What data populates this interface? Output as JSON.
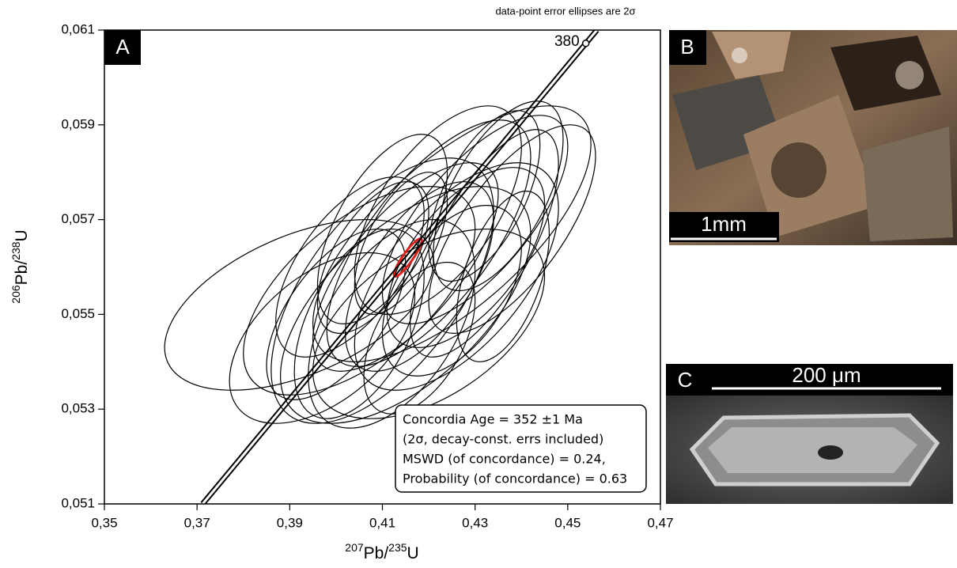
{
  "chart_data": {
    "type": "concordia",
    "note": "data-point error ellipses are 2σ",
    "panel_label": "A",
    "x_label": [
      "207",
      "Pb/",
      "235",
      "U"
    ],
    "y_label": [
      "206",
      "Pb/",
      "238",
      "U"
    ],
    "xlim": [
      0.35,
      0.47
    ],
    "ylim": [
      0.051,
      0.061
    ],
    "xticks": [
      {
        "value": 0.35,
        "label": "0,35"
      },
      {
        "value": 0.37,
        "label": "0,37"
      },
      {
        "value": 0.39,
        "label": "0,39"
      },
      {
        "value": 0.41,
        "label": "0,41"
      },
      {
        "value": 0.43,
        "label": "0,43"
      },
      {
        "value": 0.45,
        "label": "0,45"
      },
      {
        "value": 0.47,
        "label": "0,47"
      }
    ],
    "yticks": [
      {
        "value": 0.051,
        "label": "0,051"
      },
      {
        "value": 0.053,
        "label": "0,053"
      },
      {
        "value": 0.055,
        "label": "0,055"
      },
      {
        "value": 0.057,
        "label": "0,057"
      },
      {
        "value": 0.059,
        "label": "0,059"
      },
      {
        "value": 0.061,
        "label": "0,061"
      }
    ],
    "concordia": {
      "x": [
        0.3712,
        0.4563
      ],
      "y": [
        0.051,
        0.061
      ]
    },
    "concordia_ticks": [
      {
        "value": 380,
        "x": 0.4539,
        "y": 0.06072
      }
    ],
    "series": [
      {
        "color": "#000000",
        "x": [
          0.392,
          0.405,
          0.425,
          0.42,
          0.415,
          0.41,
          0.418,
          0.43,
          0.435,
          0.412,
          0.4,
          0.425,
          0.42,
          0.408,
          0.428,
          0.432,
          0.415,
          0.405,
          0.438,
          0.422,
          0.403,
          0.418,
          0.41,
          0.426,
          0.397,
          0.432,
          0.414,
          0.436
        ],
        "values": [
          0.0552,
          0.0555,
          0.0567,
          0.0565,
          0.056,
          0.0555,
          0.0558,
          0.057,
          0.0575,
          0.0548,
          0.055,
          0.0555,
          0.0548,
          0.0562,
          0.0562,
          0.0565,
          0.0552,
          0.0548,
          0.0568,
          0.0572,
          0.056,
          0.0545,
          0.0568,
          0.0558,
          0.0545,
          0.0575,
          0.0565,
          0.0558
        ],
        "x_err": [
          0.029,
          0.025,
          0.03,
          0.022,
          0.02,
          0.024,
          0.016,
          0.02,
          0.014,
          0.018,
          0.015,
          0.015,
          0.025,
          0.012,
          0.017,
          0.016,
          0.027,
          0.014,
          0.018,
          0.018,
          0.016,
          0.012,
          0.014,
          0.022,
          0.02,
          0.012,
          0.01,
          0.01
        ],
        "y_err": [
          0.0018,
          0.0022,
          0.0027,
          0.0026,
          0.0022,
          0.0028,
          0.002,
          0.0022,
          0.002,
          0.0022,
          0.0018,
          0.0018,
          0.002,
          0.0016,
          0.0019,
          0.0024,
          0.0025,
          0.002,
          0.0022,
          0.0022,
          0.0019,
          0.0016,
          0.002,
          0.0024,
          0.0018,
          0.0018,
          0.0015,
          0.0018
        ],
        "rho": [
          0.5,
          0.6,
          0.7,
          0.7,
          0.7,
          0.6,
          0.6,
          0.7,
          0.6,
          0.5,
          0.6,
          0.5,
          0.5,
          0.6,
          0.6,
          0.7,
          0.6,
          0.5,
          0.7,
          0.6,
          0.6,
          0.5,
          0.6,
          0.6,
          0.5,
          0.6,
          0.6,
          0.5
        ]
      },
      {
        "color": "#e0201b",
        "x": [
          0.4155
        ],
        "values": [
          0.0562
        ],
        "x_err": [
          0.003
        ],
        "y_err": [
          0.0004
        ],
        "rho": [
          0.9
        ]
      }
    ],
    "result_box": [
      "Concordia Age = 352 ±1 Ma",
      "(2σ, decay-const. errs included)",
      "MSWD (of concordance) = 0.24,",
      "Probability (of concordance) = 0.63"
    ]
  },
  "panels": [
    {
      "label": "B",
      "scale": "1mm"
    },
    {
      "label": "C",
      "scale": "200 μm"
    }
  ]
}
